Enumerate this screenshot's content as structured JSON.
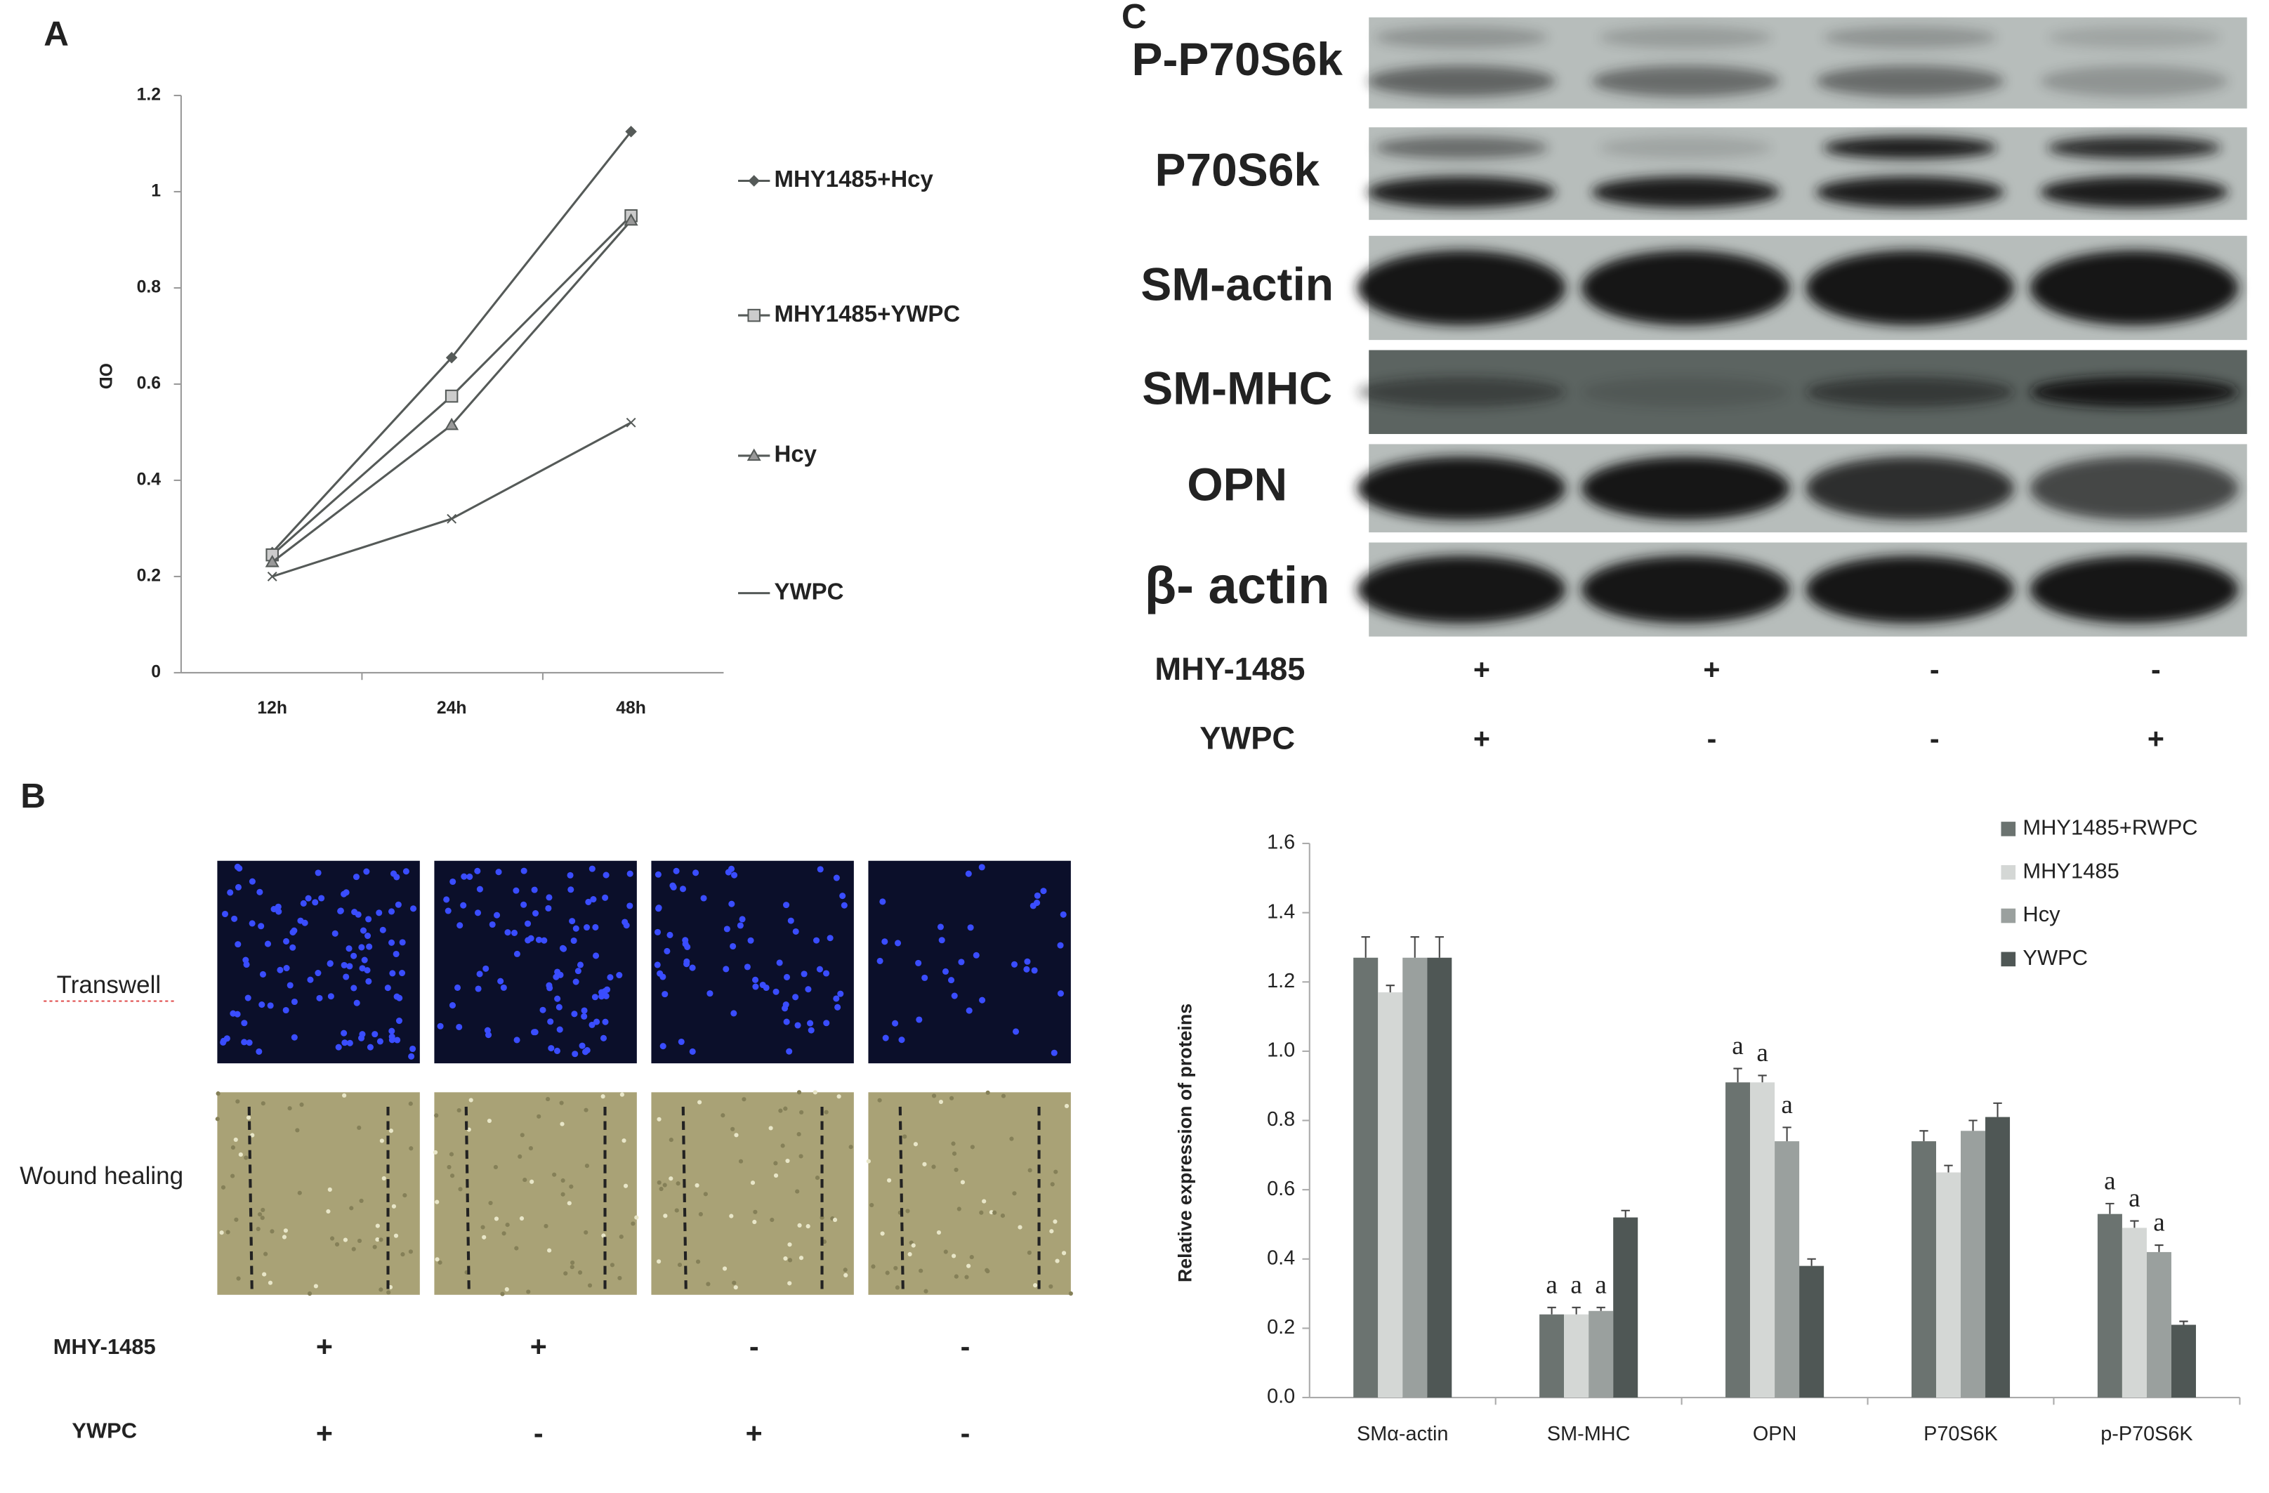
{
  "panels": {
    "a": "A",
    "b": "B",
    "c": "C"
  },
  "chart_data": [
    {
      "type": "line",
      "categories": [
        "12h",
        "24h",
        "48h"
      ],
      "y_label": "OD",
      "ylim": [
        0,
        1.2
      ],
      "yticks": [
        0,
        0.2,
        0.4,
        0.6,
        0.8,
        1,
        1.2
      ],
      "series": [
        {
          "name": "MHY1485+Hcy",
          "color": "#555a58",
          "marker": "diamond",
          "values": [
            0.25,
            0.655,
            1.125
          ]
        },
        {
          "name": "MHY1485+YWPC",
          "color": "#555a58",
          "marker": "square",
          "values": [
            0.245,
            0.575,
            0.95
          ]
        },
        {
          "name": "Hcy",
          "color": "#555a58",
          "marker": "triangle",
          "values": [
            0.23,
            0.515,
            0.94
          ]
        },
        {
          "name": "YWPC",
          "color": "#555a58",
          "marker": "x",
          "values": [
            0.2,
            0.32,
            0.52
          ]
        }
      ]
    },
    {
      "type": "bar",
      "categories": [
        "SMα-actin",
        "SM-MHC",
        "OPN",
        "P70S6K",
        "p-P70S6K"
      ],
      "y_label": "Relative expression of proteins",
      "ylim": [
        0,
        1.6
      ],
      "yticks": [
        {
          "value": 0,
          "label": "0.0"
        },
        {
          "value": 0.2,
          "label": "0.2"
        },
        {
          "value": 0.4,
          "label": "0.4"
        },
        {
          "value": 0.6,
          "label": "0.6"
        },
        {
          "value": 0.8,
          "label": "0.8"
        },
        {
          "value": 1,
          "label": "1.0"
        },
        {
          "value": 1.2,
          "label": "1.2"
        },
        {
          "value": 1.4,
          "label": "1.4"
        },
        {
          "value": 1.6,
          "label": "1.6"
        }
      ],
      "series": [
        {
          "name": "MHY1485+RWPC",
          "color": "#6b7370",
          "values": [
            1.27,
            0.24,
            0.91,
            0.74,
            0.53
          ],
          "errors": [
            0.06,
            0.02,
            0.04,
            0.03,
            0.03
          ]
        },
        {
          "name": "MHY1485",
          "color": "#d4d7d5",
          "values": [
            1.17,
            0.24,
            0.91,
            0.65,
            0.49
          ],
          "errors": [
            0.02,
            0.02,
            0.02,
            0.02,
            0.02
          ]
        },
        {
          "name": "Hcy",
          "color": "#9aa09e",
          "values": [
            1.27,
            0.25,
            0.74,
            0.77,
            0.42
          ],
          "errors": [
            0.06,
            0.01,
            0.04,
            0.03,
            0.02
          ]
        },
        {
          "name": "YWPC",
          "color": "#4f5755",
          "values": [
            1.27,
            0.52,
            0.38,
            0.81,
            0.21
          ],
          "errors": [
            0.06,
            0.02,
            0.02,
            0.04,
            0.01
          ]
        }
      ],
      "annotations": [
        {
          "text": "a",
          "series": 0,
          "category": 1
        },
        {
          "text": "a",
          "series": 1,
          "category": 1
        },
        {
          "text": "a",
          "series": 2,
          "category": 1
        },
        {
          "text": "a",
          "series": 0,
          "category": 2
        },
        {
          "text": "a",
          "series": 1,
          "category": 2
        },
        {
          "text": "a",
          "series": 2,
          "category": 2
        },
        {
          "text": "a",
          "series": 0,
          "category": 4
        },
        {
          "text": "a",
          "series": 1,
          "category": 4
        },
        {
          "text": "a",
          "series": 2,
          "category": 4
        }
      ]
    }
  ],
  "assay": {
    "rows": [
      "Transwell",
      "Wound healing"
    ],
    "treatments": [
      {
        "name": "MHY-1485",
        "signs": [
          "+",
          "+",
          "-",
          "-"
        ]
      },
      {
        "name": "YWPC",
        "signs": [
          "+",
          "-",
          "+",
          "-"
        ]
      }
    ]
  },
  "blot": {
    "rows": [
      "P-P70S6k",
      "P70S6k",
      "SM-actin",
      "SM-MHC",
      "OPN",
      "β- actin"
    ],
    "treatments": [
      {
        "name": "MHY-1485",
        "signs": [
          "+",
          "+",
          "-",
          "-"
        ]
      },
      {
        "name": "YWPC",
        "signs": [
          "+",
          "-",
          "-",
          "+"
        ]
      }
    ]
  }
}
